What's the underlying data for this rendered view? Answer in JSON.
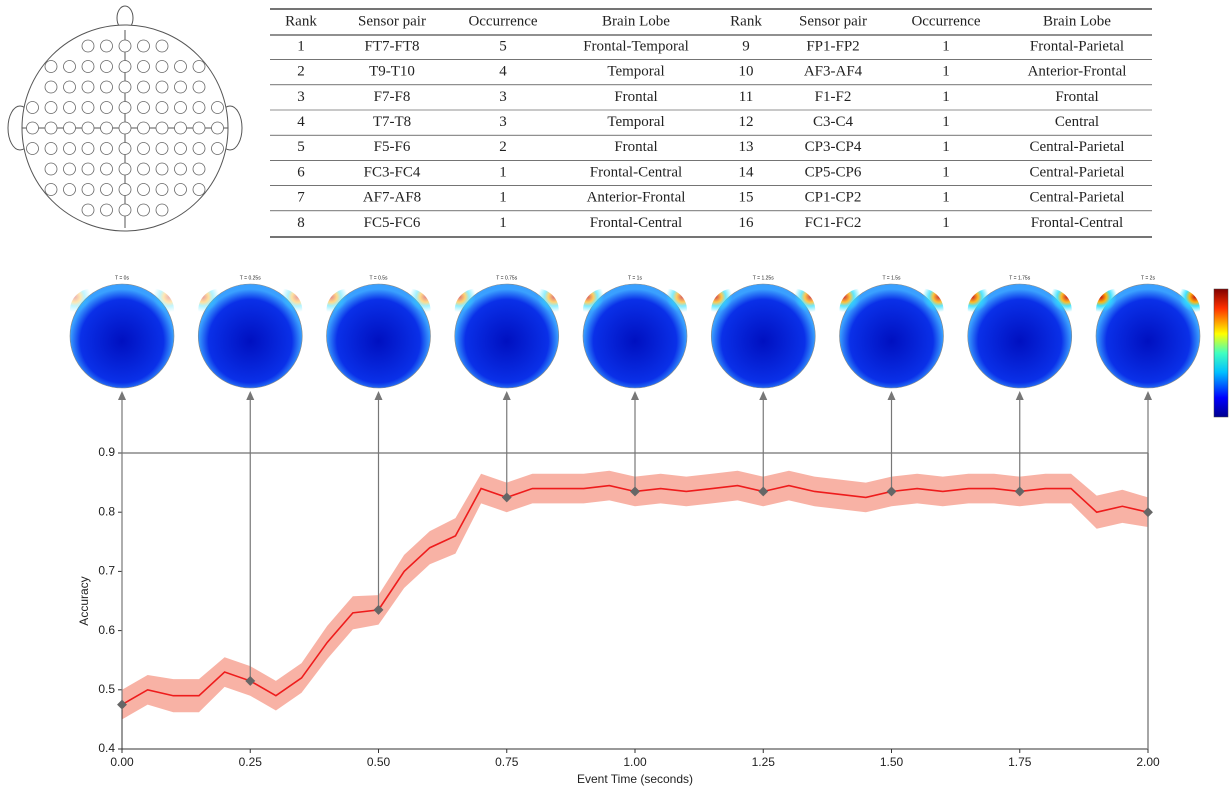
{
  "table": {
    "columns": [
      "Rank",
      "Sensor pair",
      "Occurrence",
      "Brain Lobe",
      "Rank",
      "Sensor pair",
      "Occurrence",
      "Brain Lobe"
    ],
    "rows": [
      [
        1,
        "FT7-FT8",
        5,
        "Frontal-Temporal",
        9,
        "FP1-FP2",
        1,
        "Frontal-Parietal"
      ],
      [
        2,
        "T9-T10",
        4,
        "Temporal",
        10,
        "AF3-AF4",
        1,
        "Anterior-Frontal"
      ],
      [
        3,
        "F7-F8",
        3,
        "Frontal",
        11,
        "F1-F2",
        1,
        "Frontal"
      ],
      [
        4,
        "T7-T8",
        3,
        "Temporal",
        12,
        "C3-C4",
        1,
        "Central"
      ],
      [
        5,
        "F5-F6",
        2,
        "Frontal",
        13,
        "CP3-CP4",
        1,
        "Central-Parietal"
      ],
      [
        6,
        "FC3-FC4",
        1,
        "Frontal-Central",
        14,
        "CP5-CP6",
        1,
        "Central-Parietal"
      ],
      [
        7,
        "AF7-AF8",
        1,
        "Anterior-Frontal",
        15,
        "CP1-CP2",
        1,
        "Central-Parietal"
      ],
      [
        8,
        "FC5-FC6",
        1,
        "Frontal-Central",
        16,
        "FC1-FC2",
        1,
        "Frontal-Central"
      ]
    ]
  },
  "chart_data": {
    "type": "line",
    "xlabel": "Event Time (seconds)",
    "ylabel": "Accuracy",
    "x": [
      0,
      0.05,
      0.1,
      0.15,
      0.2,
      0.25,
      0.3,
      0.35,
      0.4,
      0.45,
      0.5,
      0.55,
      0.6,
      0.65,
      0.7,
      0.75,
      0.8,
      0.85,
      0.9,
      0.95,
      1.0,
      1.05,
      1.1,
      1.15,
      1.2,
      1.25,
      1.3,
      1.35,
      1.4,
      1.45,
      1.5,
      1.55,
      1.6,
      1.65,
      1.7,
      1.75,
      1.8,
      1.85,
      1.9,
      1.95,
      2.0
    ],
    "series": [
      {
        "color": "#ee1c1c",
        "band_color": "#f7a595",
        "values": [
          0.475,
          0.5,
          0.49,
          0.49,
          0.53,
          0.515,
          0.49,
          0.52,
          0.58,
          0.63,
          0.635,
          0.7,
          0.74,
          0.76,
          0.84,
          0.825,
          0.84,
          0.84,
          0.84,
          0.845,
          0.835,
          0.84,
          0.835,
          0.84,
          0.845,
          0.835,
          0.845,
          0.835,
          0.83,
          0.825,
          0.835,
          0.84,
          0.835,
          0.84,
          0.84,
          0.835,
          0.84,
          0.84,
          0.8,
          0.81,
          0.8
        ],
        "errors": [
          0.025,
          0.025,
          0.028,
          0.028,
          0.025,
          0.025,
          0.025,
          0.025,
          0.028,
          0.028,
          0.025,
          0.028,
          0.028,
          0.03,
          0.025,
          0.025,
          0.025,
          0.025,
          0.025,
          0.025,
          0.025,
          0.025,
          0.025,
          0.025,
          0.025,
          0.025,
          0.025,
          0.025,
          0.025,
          0.025,
          0.025,
          0.025,
          0.025,
          0.025,
          0.025,
          0.025,
          0.025,
          0.025,
          0.028,
          0.028,
          0.025
        ]
      }
    ],
    "xlim": [
      0,
      2
    ],
    "ylim": [
      0.4,
      0.9
    ],
    "xticks": [
      {
        "value": 0,
        "label": "0.00"
      },
      {
        "value": 0.25,
        "label": "0.25"
      },
      {
        "value": 0.5,
        "label": "0.50"
      },
      {
        "value": 0.75,
        "label": "0.75"
      },
      {
        "value": 1,
        "label": "1.00"
      },
      {
        "value": 1.25,
        "label": "1.25"
      },
      {
        "value": 1.5,
        "label": "1.50"
      },
      {
        "value": 1.75,
        "label": "1.75"
      },
      {
        "value": 2,
        "label": "2.00"
      }
    ],
    "yticks": [
      0.4,
      0.5,
      0.6,
      0.7,
      0.8,
      0.9
    ],
    "topomaps": [
      {
        "label": "T = 0s",
        "time": 0
      },
      {
        "label": "T = 0.25s",
        "time": 0.25
      },
      {
        "label": "T = 0.5s",
        "time": 0.5
      },
      {
        "label": "T = 0.75s",
        "time": 0.75
      },
      {
        "label": "T = 1s",
        "time": 1
      },
      {
        "label": "T = 1.25s",
        "time": 1.25
      },
      {
        "label": "T = 1.5s",
        "time": 1.5
      },
      {
        "label": "T = 1.75s",
        "time": 1.75
      },
      {
        "label": "T = 2s",
        "time": 2
      }
    ]
  }
}
